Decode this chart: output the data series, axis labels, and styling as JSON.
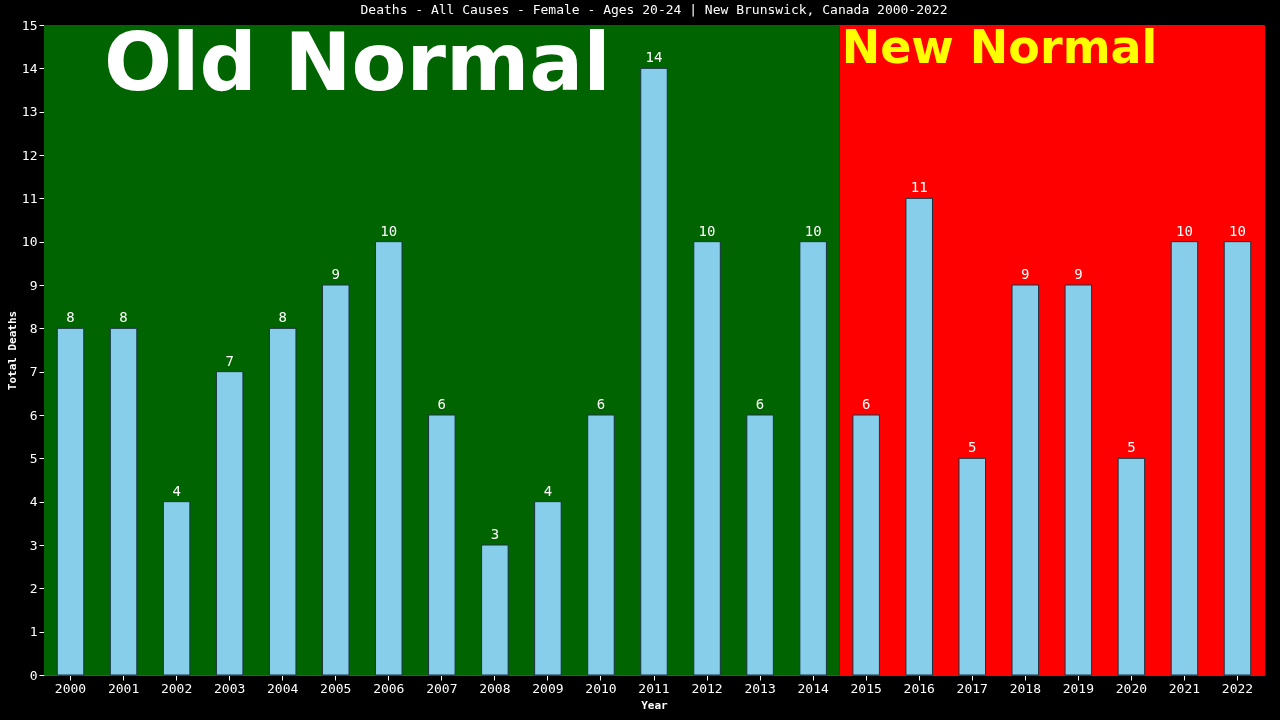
{
  "chart_data": {
    "type": "bar",
    "title": "Deaths - All Causes - Female - Ages 20-24 | New Brunswick, Canada 2000-2022",
    "xlabel": "Year",
    "ylabel": "Total Deaths",
    "categories": [
      "2000",
      "2001",
      "2002",
      "2003",
      "2004",
      "2005",
      "2006",
      "2007",
      "2008",
      "2009",
      "2010",
      "2011",
      "2012",
      "2013",
      "2014",
      "2015",
      "2016",
      "2017",
      "2018",
      "2019",
      "2020",
      "2021",
      "2022"
    ],
    "values": [
      8,
      8,
      4,
      7,
      8,
      9,
      10,
      6,
      3,
      4,
      6,
      14,
      10,
      6,
      10,
      6,
      11,
      5,
      9,
      9,
      5,
      10,
      10
    ],
    "color": "#87ceeb",
    "data_labels": true,
    "ylim": [
      0,
      15
    ],
    "yticks": [
      0,
      1,
      2,
      3,
      4,
      5,
      6,
      7,
      8,
      9,
      10,
      11,
      12,
      13,
      14,
      15
    ],
    "grid": false,
    "bands": [
      {
        "axis": "x",
        "from": "2000",
        "to": "2014",
        "label": "Old Normal",
        "color": "#006400"
      },
      {
        "axis": "x",
        "from": "2015",
        "to": "2022",
        "label": "New Normal",
        "color": "#ff0000"
      }
    ]
  }
}
